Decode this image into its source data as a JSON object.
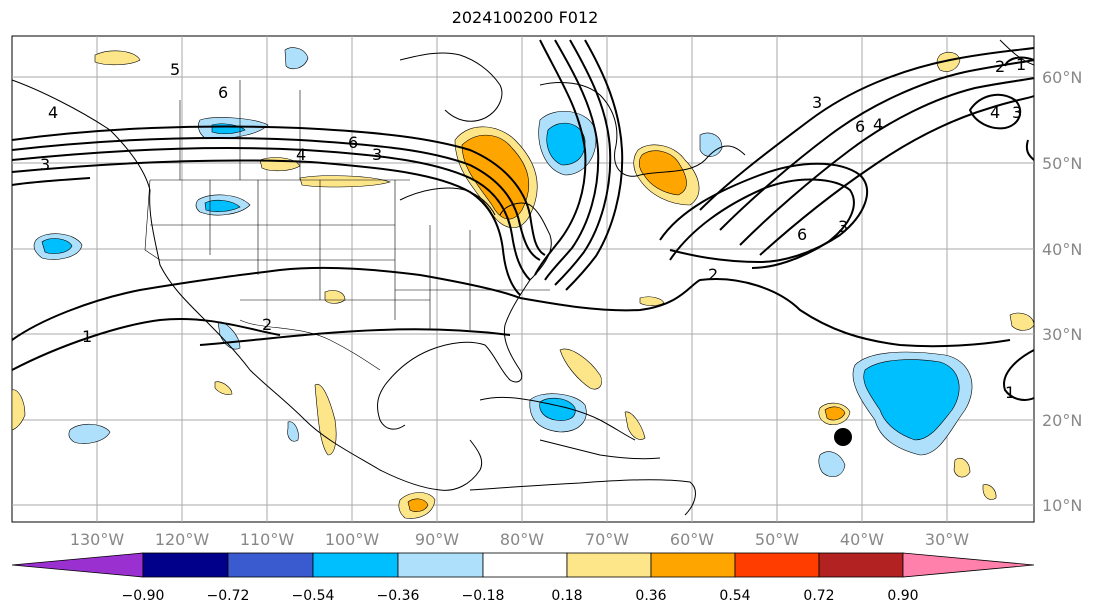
{
  "title": "2024100200 F012",
  "map": {
    "lat_labels": [
      "60°N",
      "50°N",
      "40°N",
      "30°N",
      "20°N",
      "10°N"
    ],
    "lon_labels": [
      "130°W",
      "120°W",
      "110°W",
      "100°W",
      "90°W",
      "80°W",
      "70°W",
      "60°W",
      "50°W",
      "40°W",
      "30°W"
    ],
    "contour_labels": [
      "5",
      "6",
      "4",
      "3",
      "6",
      "4",
      "3",
      "2",
      "1",
      "2",
      "1",
      "6",
      "4",
      "3",
      "6",
      "3",
      "2",
      "1",
      "3",
      "4"
    ],
    "marker": "storm-center-dot"
  },
  "colorbar": {
    "levels": [
      "−0.90",
      "−0.72",
      "−0.54",
      "−0.36",
      "−0.18",
      "0.18",
      "0.36",
      "0.54",
      "0.72",
      "0.90"
    ],
    "colors": [
      "#9b30d0",
      "#00008b",
      "#3a5bd0",
      "#00bfff",
      "#aee0fb",
      "#ffffff",
      "#fde68a",
      "#ffa500",
      "#ff3d00",
      "#b22222",
      "#ff80ab"
    ]
  }
}
